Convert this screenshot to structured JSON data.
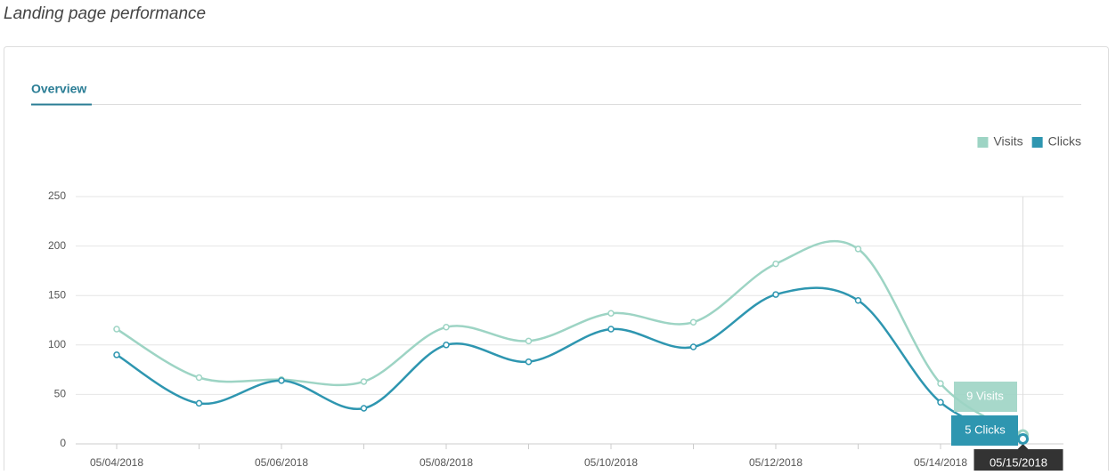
{
  "page_title": "Landing page performance",
  "tab": "Overview",
  "chart_data": {
    "type": "line",
    "categories": [
      "05/04/2018",
      null,
      "05/06/2018",
      null,
      "05/08/2018",
      null,
      "05/10/2018",
      null,
      "05/12/2018",
      null,
      "05/14/2018",
      "05/15/2018"
    ],
    "series": [
      {
        "name": "Visits",
        "color": "#9dd4c4",
        "values": [
          116,
          67,
          65,
          63,
          118,
          104,
          132,
          123,
          182,
          197,
          61,
          9
        ]
      },
      {
        "name": "Clicks",
        "color": "#2e96b0",
        "values": [
          90,
          41,
          64,
          36,
          100,
          83,
          116,
          98,
          151,
          145,
          42,
          5
        ]
      }
    ],
    "ylim": [
      0,
      250
    ],
    "yticks": [
      0,
      50,
      100,
      150,
      200,
      250
    ],
    "grid": true,
    "legend": "top-right",
    "tooltip": [
      "9 Visits",
      "5 Clicks"
    ]
  }
}
